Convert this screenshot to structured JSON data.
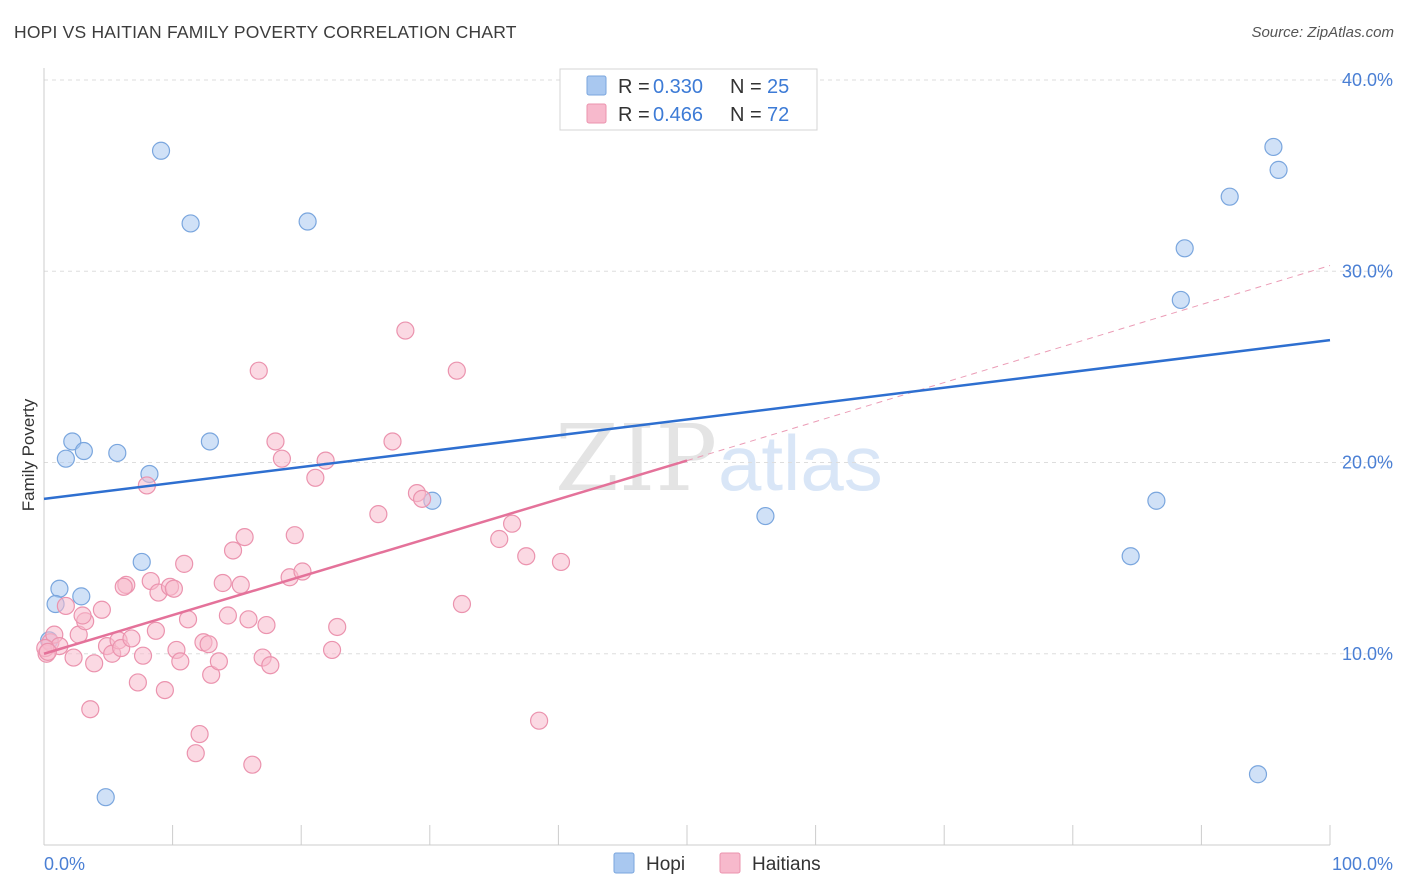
{
  "header": {
    "title": "HOPI VS HAITIAN FAMILY POVERTY CORRELATION CHART",
    "source": "Source: ZipAtlas.com"
  },
  "watermark": {
    "zip": "ZIP",
    "atlas": "atlas"
  },
  "legend": {
    "rows": [
      {
        "r_label": "R = ",
        "r_value": "0.330",
        "n_label": "N = ",
        "n_value": "25",
        "color": "#a9c8f0"
      },
      {
        "r_label": "R = ",
        "r_value": "0.466",
        "n_label": "N = ",
        "n_value": "72",
        "color": "#f7b9cc"
      }
    ]
  },
  "bottom_legend": {
    "hopi": "Hopi",
    "haitians": "Haitians"
  },
  "chart_data": {
    "type": "scatter",
    "title": "HOPI VS HAITIAN FAMILY POVERTY CORRELATION CHART",
    "xlabel": "",
    "ylabel": "Family Poverty",
    "xlim": [
      0,
      100
    ],
    "ylim": [
      0,
      40
    ],
    "x_tick_labels": [
      "0.0%",
      "100.0%"
    ],
    "y_ticks": [
      10,
      20,
      30,
      40
    ],
    "y_tick_labels": [
      "10.0%",
      "20.0%",
      "30.0%",
      "40.0%"
    ],
    "grid": true,
    "series": [
      {
        "name": "Hopi",
        "color": "#a9c8f0",
        "stroke": "#7aa6de",
        "trend": {
          "x": [
            0,
            100
          ],
          "y": [
            18.1,
            26.4
          ],
          "color": "#2e6fd0"
        },
        "points": [
          [
            0.4,
            10.7
          ],
          [
            1.2,
            13.4
          ],
          [
            0.9,
            12.6
          ],
          [
            2.2,
            21.1
          ],
          [
            3.1,
            20.6
          ],
          [
            1.7,
            20.2
          ],
          [
            2.9,
            13.0
          ],
          [
            4.8,
            2.5
          ],
          [
            5.7,
            20.5
          ],
          [
            7.6,
            14.8
          ],
          [
            8.2,
            19.4
          ],
          [
            9.1,
            36.3
          ],
          [
            11.4,
            32.5
          ],
          [
            12.9,
            21.1
          ],
          [
            20.5,
            32.6
          ],
          [
            30.2,
            18.0
          ],
          [
            56.1,
            17.2
          ],
          [
            86.5,
            18.0
          ],
          [
            84.5,
            15.1
          ],
          [
            88.4,
            28.5
          ],
          [
            88.7,
            31.2
          ],
          [
            92.2,
            33.9
          ],
          [
            95.6,
            36.5
          ],
          [
            96.0,
            35.3
          ],
          [
            94.4,
            3.7
          ]
        ]
      },
      {
        "name": "Haitians",
        "color": "#f7b9cc",
        "stroke": "#eb93ae",
        "trend": {
          "x": [
            0,
            50
          ],
          "y": [
            10.0,
            20.1
          ],
          "color": "#e4729a"
        },
        "trend_dashed": {
          "x": [
            50,
            100
          ],
          "y": [
            20.1,
            30.3
          ]
        },
        "points": [
          [
            0.2,
            10.0
          ],
          [
            0.5,
            10.6
          ],
          [
            0.8,
            11.0
          ],
          [
            1.2,
            10.4
          ],
          [
            1.7,
            12.5
          ],
          [
            2.3,
            9.8
          ],
          [
            2.7,
            11.0
          ],
          [
            3.2,
            11.7
          ],
          [
            3.6,
            7.1
          ],
          [
            3.9,
            9.5
          ],
          [
            4.5,
            12.3
          ],
          [
            4.9,
            10.4
          ],
          [
            5.3,
            10.0
          ],
          [
            5.8,
            10.7
          ],
          [
            6.0,
            10.3
          ],
          [
            6.4,
            13.6
          ],
          [
            6.8,
            10.8
          ],
          [
            7.3,
            8.5
          ],
          [
            7.7,
            9.9
          ],
          [
            8.0,
            18.8
          ],
          [
            8.3,
            13.8
          ],
          [
            8.7,
            11.2
          ],
          [
            8.9,
            13.2
          ],
          [
            9.4,
            8.1
          ],
          [
            9.8,
            13.5
          ],
          [
            10.1,
            13.4
          ],
          [
            10.3,
            10.2
          ],
          [
            10.6,
            9.6
          ],
          [
            10.9,
            14.7
          ],
          [
            11.2,
            11.8
          ],
          [
            11.8,
            4.8
          ],
          [
            12.1,
            5.8
          ],
          [
            12.4,
            10.6
          ],
          [
            12.8,
            10.5
          ],
          [
            13.0,
            8.9
          ],
          [
            13.6,
            9.6
          ],
          [
            13.9,
            13.7
          ],
          [
            14.3,
            12.0
          ],
          [
            14.7,
            15.4
          ],
          [
            15.3,
            13.6
          ],
          [
            15.6,
            16.1
          ],
          [
            15.9,
            11.8
          ],
          [
            16.2,
            4.2
          ],
          [
            16.7,
            24.8
          ],
          [
            17.0,
            9.8
          ],
          [
            17.3,
            11.5
          ],
          [
            17.6,
            9.4
          ],
          [
            18.0,
            21.1
          ],
          [
            18.5,
            20.2
          ],
          [
            19.1,
            14.0
          ],
          [
            19.5,
            16.2
          ],
          [
            20.1,
            14.3
          ],
          [
            21.1,
            19.2
          ],
          [
            21.9,
            20.1
          ],
          [
            22.4,
            10.2
          ],
          [
            22.8,
            11.4
          ],
          [
            26.0,
            17.3
          ],
          [
            27.1,
            21.1
          ],
          [
            28.1,
            26.9
          ],
          [
            29.0,
            18.4
          ],
          [
            29.4,
            18.1
          ],
          [
            32.1,
            24.8
          ],
          [
            32.5,
            12.6
          ],
          [
            35.4,
            16.0
          ],
          [
            36.4,
            16.8
          ],
          [
            37.5,
            15.1
          ],
          [
            38.5,
            6.5
          ],
          [
            40.2,
            14.8
          ],
          [
            0.1,
            10.3
          ],
          [
            0.3,
            10.1
          ],
          [
            6.2,
            13.5
          ],
          [
            3.0,
            12.0
          ]
        ]
      }
    ]
  }
}
